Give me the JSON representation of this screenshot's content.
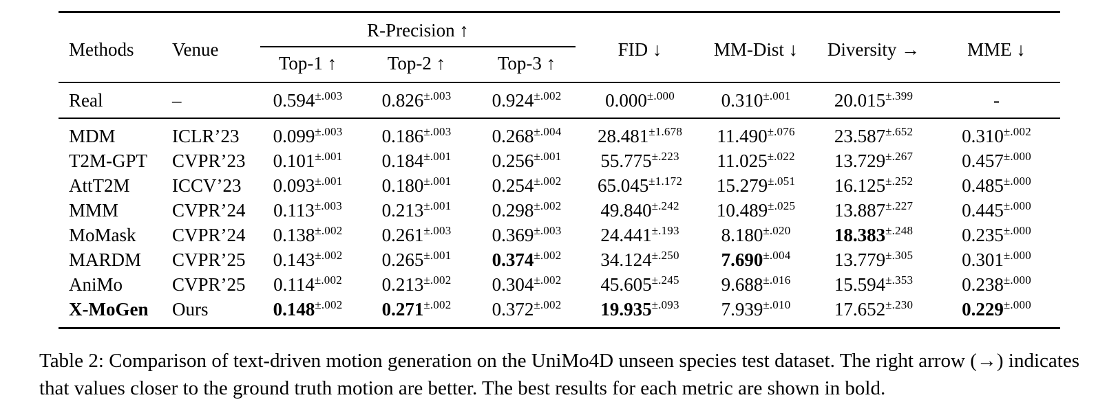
{
  "table": {
    "col_headers": {
      "methods": "Methods",
      "venue": "Venue",
      "r_precision": "R-Precision ↑",
      "top1": "Top-1 ↑",
      "top2": "Top-2 ↑",
      "top3": "Top-3 ↑",
      "fid": "FID ↓",
      "mm_dist": "MM-Dist ↓",
      "diversity": "Diversity →",
      "mme": "MME ↓"
    },
    "real_row": {
      "id": "real",
      "method": "Real",
      "method_bold": false,
      "venue": "–",
      "cells": [
        {
          "v": "0.594",
          "e": "±.003",
          "bold": false
        },
        {
          "v": "0.826",
          "e": "±.003",
          "bold": false
        },
        {
          "v": "0.924",
          "e": "±.002",
          "bold": false
        },
        {
          "v": "0.000",
          "e": "±.000",
          "bold": false
        },
        {
          "v": "0.310",
          "e": "±.001",
          "bold": false
        },
        {
          "v": "20.015",
          "e": "±.399",
          "bold": false
        },
        {
          "v": "-",
          "e": null,
          "bold": false
        }
      ]
    },
    "rows": [
      {
        "id": "mdm",
        "method": "MDM",
        "method_bold": false,
        "venue": "ICLR’23",
        "cells": [
          {
            "v": "0.099",
            "e": "±.003",
            "bold": false
          },
          {
            "v": "0.186",
            "e": "±.003",
            "bold": false
          },
          {
            "v": "0.268",
            "e": "±.004",
            "bold": false
          },
          {
            "v": "28.481",
            "e": "±1.678",
            "bold": false
          },
          {
            "v": "11.490",
            "e": "±.076",
            "bold": false
          },
          {
            "v": "23.587",
            "e": "±.652",
            "bold": false
          },
          {
            "v": "0.310",
            "e": "±.002",
            "bold": false
          }
        ]
      },
      {
        "id": "t2m-gpt",
        "method": "T2M-GPT",
        "method_bold": false,
        "venue": "CVPR’23",
        "cells": [
          {
            "v": "0.101",
            "e": "±.001",
            "bold": false
          },
          {
            "v": "0.184",
            "e": "±.001",
            "bold": false
          },
          {
            "v": "0.256",
            "e": "±.001",
            "bold": false
          },
          {
            "v": "55.775",
            "e": "±.223",
            "bold": false
          },
          {
            "v": "11.025",
            "e": "±.022",
            "bold": false
          },
          {
            "v": "13.729",
            "e": "±.267",
            "bold": false
          },
          {
            "v": "0.457",
            "e": "±.000",
            "bold": false
          }
        ]
      },
      {
        "id": "attt2m",
        "method": "AttT2M",
        "method_bold": false,
        "venue": "ICCV’23",
        "cells": [
          {
            "v": "0.093",
            "e": "±.001",
            "bold": false
          },
          {
            "v": "0.180",
            "e": "±.001",
            "bold": false
          },
          {
            "v": "0.254",
            "e": "±.002",
            "bold": false
          },
          {
            "v": "65.045",
            "e": "±1.172",
            "bold": false
          },
          {
            "v": "15.279",
            "e": "±.051",
            "bold": false
          },
          {
            "v": "16.125",
            "e": "±.252",
            "bold": false
          },
          {
            "v": "0.485",
            "e": "±.000",
            "bold": false
          }
        ]
      },
      {
        "id": "mmm",
        "method": "MMM",
        "method_bold": false,
        "venue": "CVPR’24",
        "cells": [
          {
            "v": "0.113",
            "e": "±.003",
            "bold": false
          },
          {
            "v": "0.213",
            "e": "±.001",
            "bold": false
          },
          {
            "v": "0.298",
            "e": "±.002",
            "bold": false
          },
          {
            "v": "49.840",
            "e": "±.242",
            "bold": false
          },
          {
            "v": "10.489",
            "e": "±.025",
            "bold": false
          },
          {
            "v": "13.887",
            "e": "±.227",
            "bold": false
          },
          {
            "v": "0.445",
            "e": "±.000",
            "bold": false
          }
        ]
      },
      {
        "id": "momask",
        "method": "MoMask",
        "method_bold": false,
        "venue": "CVPR’24",
        "cells": [
          {
            "v": "0.138",
            "e": "±.002",
            "bold": false
          },
          {
            "v": "0.261",
            "e": "±.003",
            "bold": false
          },
          {
            "v": "0.369",
            "e": "±.003",
            "bold": false
          },
          {
            "v": "24.441",
            "e": "±.193",
            "bold": false
          },
          {
            "v": "8.180",
            "e": "±.020",
            "bold": false
          },
          {
            "v": "18.383",
            "e": "±.248",
            "bold": true
          },
          {
            "v": "0.235",
            "e": "±.000",
            "bold": false
          }
        ]
      },
      {
        "id": "mardm",
        "method": "MARDM",
        "method_bold": false,
        "venue": "CVPR’25",
        "cells": [
          {
            "v": "0.143",
            "e": "±.002",
            "bold": false
          },
          {
            "v": "0.265",
            "e": "±.001",
            "bold": false
          },
          {
            "v": "0.374",
            "e": "±.002",
            "bold": true
          },
          {
            "v": "34.124",
            "e": "±.250",
            "bold": false
          },
          {
            "v": "7.690",
            "e": "±.004",
            "bold": true
          },
          {
            "v": "13.779",
            "e": "±.305",
            "bold": false
          },
          {
            "v": "0.301",
            "e": "±.000",
            "bold": false
          }
        ]
      },
      {
        "id": "animo",
        "method": "AniMo",
        "method_bold": false,
        "venue": "CVPR’25",
        "cells": [
          {
            "v": "0.114",
            "e": "±.002",
            "bold": false
          },
          {
            "v": "0.213",
            "e": "±.002",
            "bold": false
          },
          {
            "v": "0.304",
            "e": "±.002",
            "bold": false
          },
          {
            "v": "45.605",
            "e": "±.245",
            "bold": false
          },
          {
            "v": "9.688",
            "e": "±.016",
            "bold": false
          },
          {
            "v": "15.594",
            "e": "±.353",
            "bold": false
          },
          {
            "v": "0.238",
            "e": "±.000",
            "bold": false
          }
        ]
      },
      {
        "id": "x-mogen",
        "method": "X-MoGen",
        "method_bold": true,
        "venue": "Ours",
        "cells": [
          {
            "v": "0.148",
            "e": "±.002",
            "bold": true
          },
          {
            "v": "0.271",
            "e": "±.002",
            "bold": true
          },
          {
            "v": "0.372",
            "e": "±.002",
            "bold": false
          },
          {
            "v": "19.935",
            "e": "±.093",
            "bold": true
          },
          {
            "v": "7.939",
            "e": "±.010",
            "bold": false
          },
          {
            "v": "17.652",
            "e": "±.230",
            "bold": false
          },
          {
            "v": "0.229",
            "e": "±.000",
            "bold": true
          }
        ]
      }
    ]
  },
  "caption": {
    "text": "Table 2: Comparison of text-driven motion generation on the UniMo4D unseen species test dataset. The right arrow (→) indicates that values closer to the ground truth motion are better. The best results for each metric are shown in bold."
  }
}
